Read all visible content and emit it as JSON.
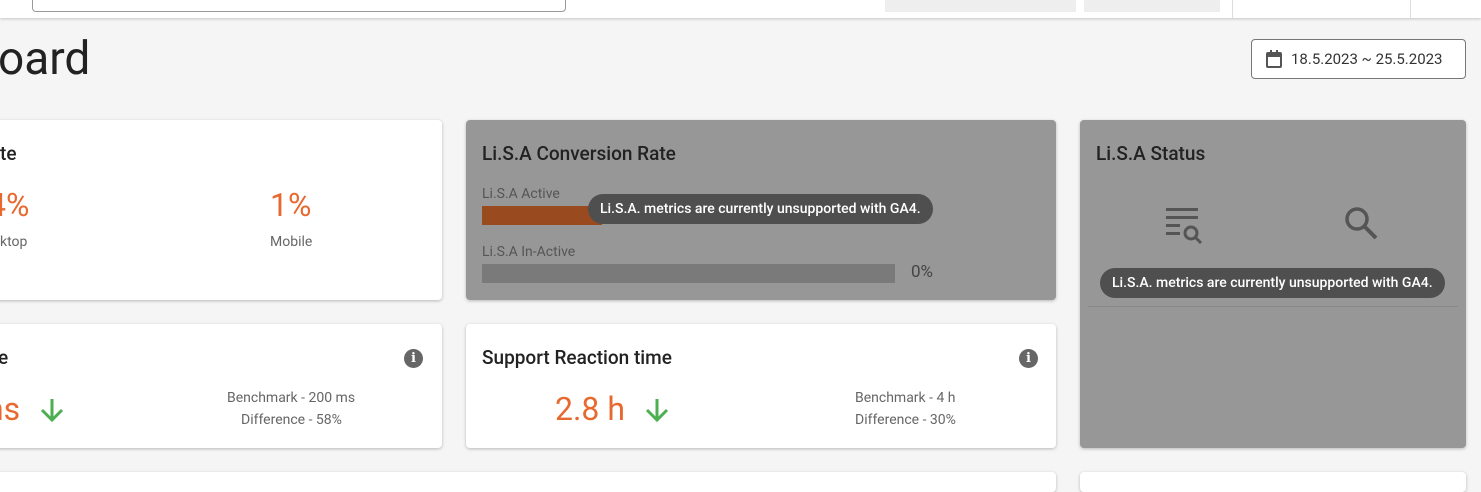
{
  "header": {
    "title": "oard",
    "date_range": "18.5.2023 ~ 25.5.2023"
  },
  "cards": [
    {
      "title": "te",
      "items": [
        {
          "value": "4%",
          "label": "ktop"
        },
        {
          "value": "1%",
          "label": "Mobile"
        }
      ]
    },
    {
      "title": "Li.S.A Conversion Rate",
      "rows": [
        {
          "label": "Li.S.A Active"
        },
        {
          "label": "Li.S.A In-Active",
          "value": "0%"
        }
      ],
      "tooltip": "Li.S.A. metrics are currently unsupported with GA4."
    },
    {
      "title": "Li.S.A Status",
      "tooltip": "Li.S.A. metrics are currently unsupported with GA4."
    },
    {
      "title": "e",
      "value": "ns",
      "benchmark": "Benchmark - 200 ms",
      "difference": "Difference - 58%"
    },
    {
      "title": "Support Reaction time",
      "value": "2.8 h",
      "benchmark": "Benchmark - 4 h",
      "difference": "Difference - 30%"
    }
  ]
}
